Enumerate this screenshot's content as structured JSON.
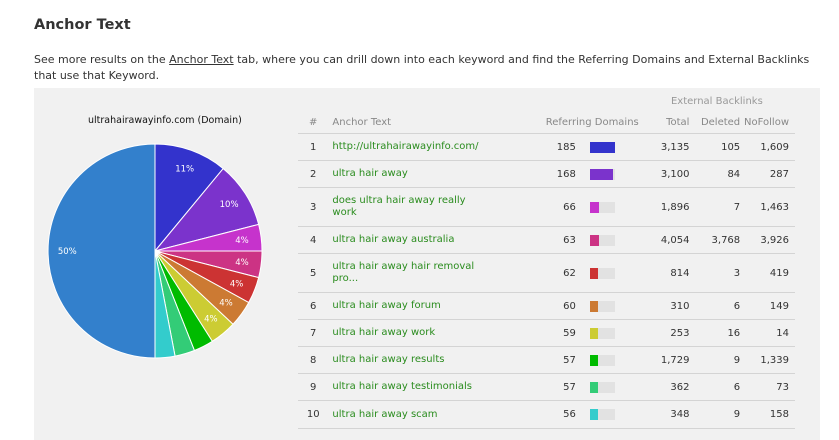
{
  "section": {
    "title": "Anchor Text",
    "intro_prefix": "See more results on the ",
    "intro_link": "Anchor Text",
    "intro_suffix": " tab, where you can drill down into each keyword and find the Referring Domains and External Backlinks that use that Keyword."
  },
  "pie": {
    "title": "ultrahairawayinfo.com (Domain)"
  },
  "table": {
    "group_header": "External Backlinks",
    "columns": {
      "num": "#",
      "anchor_text": "Anchor Text",
      "referring_domains": "Referring Domains",
      "total": "Total",
      "deleted": "Deleted",
      "nofollow": "NoFollow"
    },
    "rows": [
      {
        "num": "1",
        "anchor_text": "http://ultrahairawayinfo.com/",
        "referring_domains": "185",
        "total": "3,135",
        "deleted": "105",
        "nofollow": "1,609",
        "color": "#3333cc"
      },
      {
        "num": "2",
        "anchor_text": "ultra hair away",
        "referring_domains": "168",
        "total": "3,100",
        "deleted": "84",
        "nofollow": "287",
        "color": "#7b33cc"
      },
      {
        "num": "3",
        "anchor_text": "does ultra hair away really work",
        "referring_domains": "66",
        "total": "1,896",
        "deleted": "7",
        "nofollow": "1,463",
        "color": "#c633cc"
      },
      {
        "num": "4",
        "anchor_text": "ultra hair away australia",
        "referring_domains": "63",
        "total": "4,054",
        "deleted": "3,768",
        "nofollow": "3,926",
        "color": "#cc3384"
      },
      {
        "num": "5",
        "anchor_text": "ultra hair away hair removal pro...",
        "referring_domains": "62",
        "total": "814",
        "deleted": "3",
        "nofollow": "419",
        "color": "#cc3333"
      },
      {
        "num": "6",
        "anchor_text": "ultra hair away forum",
        "referring_domains": "60",
        "total": "310",
        "deleted": "6",
        "nofollow": "149",
        "color": "#cc7a33"
      },
      {
        "num": "7",
        "anchor_text": "ultra hair away work",
        "referring_domains": "59",
        "total": "253",
        "deleted": "16",
        "nofollow": "14",
        "color": "#cccc33"
      },
      {
        "num": "8",
        "anchor_text": "ultra hair away results",
        "referring_domains": "57",
        "total": "1,729",
        "deleted": "9",
        "nofollow": "1,339",
        "color": "#00bb00"
      },
      {
        "num": "9",
        "anchor_text": "ultra hair away testimonials",
        "referring_domains": "57",
        "total": "362",
        "deleted": "6",
        "nofollow": "73",
        "color": "#33cc77"
      },
      {
        "num": "10",
        "anchor_text": "ultra hair away scam",
        "referring_domains": "56",
        "total": "348",
        "deleted": "9",
        "nofollow": "158",
        "color": "#33cccc"
      }
    ]
  },
  "chart_data": {
    "type": "pie",
    "title": "ultrahairawayinfo.com (Domain)",
    "labels_shown": [
      "11%",
      "10%",
      "4%",
      "4%",
      "4%",
      "4%",
      "4%",
      "",
      "",
      "",
      "50%"
    ],
    "slices": [
      {
        "value": 11,
        "color": "#3333cc"
      },
      {
        "value": 10,
        "color": "#7b33cc"
      },
      {
        "value": 4,
        "color": "#c633cc"
      },
      {
        "value": 4,
        "color": "#cc3384"
      },
      {
        "value": 4,
        "color": "#cc3333"
      },
      {
        "value": 4,
        "color": "#cc7a33"
      },
      {
        "value": 4,
        "color": "#cccc33"
      },
      {
        "value": 3,
        "color": "#00bb00"
      },
      {
        "value": 3,
        "color": "#33cc77"
      },
      {
        "value": 3,
        "color": "#33cccc"
      },
      {
        "value": 50,
        "color": "#3380cc"
      }
    ]
  }
}
